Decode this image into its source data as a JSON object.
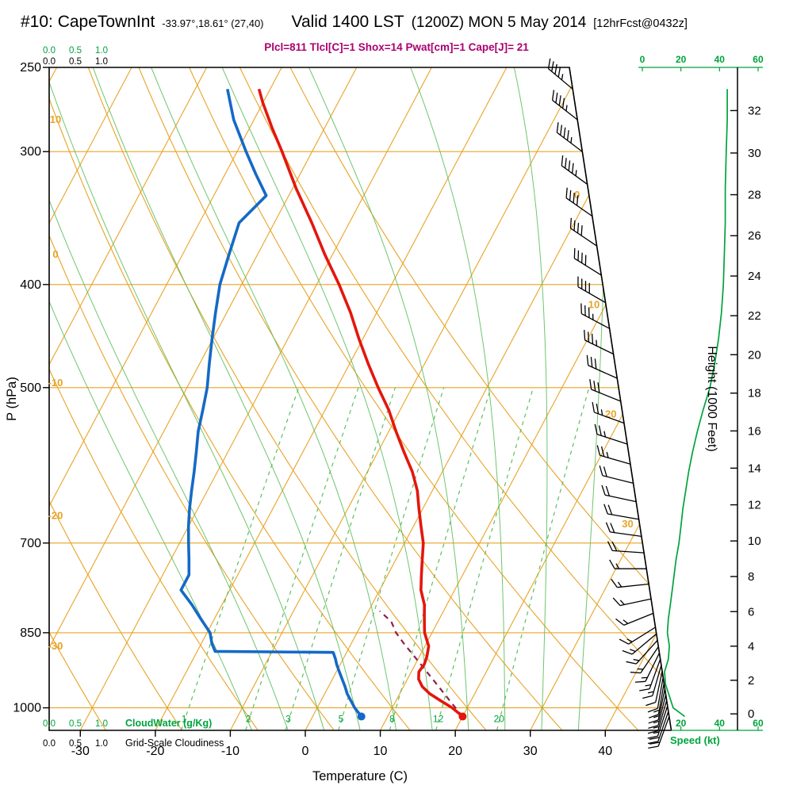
{
  "header": {
    "station_id": "#10: CapeTownInt",
    "coords": "-33.97°,18.61° (27,40)",
    "valid": "Valid 1400 LST",
    "valid_zulu": "(1200Z) MON 5 May 2014",
    "fcst": "[12hrFcst@0432z]",
    "indices": "Plcl=811 Tlcl[C]=1 Shox=14 Pwat[cm]=1 Cape[J]= 21"
  },
  "colors": {
    "orange": "#E8A326",
    "green": "#00A33C",
    "green_light": "#5FBF5F",
    "red": "#E3170D",
    "blue": "#1569C7",
    "parcel": "#902048",
    "magenta": "#AB0070",
    "black": "#000000"
  },
  "axes": {
    "pressure_label": "P (hPa)",
    "pressure_ticks": [
      250,
      300,
      400,
      500,
      700,
      850,
      1000
    ],
    "temp_label": "Temperature (C)",
    "temp_ticks": [
      -30,
      -20,
      -10,
      0,
      10,
      20,
      30,
      40
    ],
    "height_label": "Height (1000 Feet)",
    "height_ticks": [
      0,
      2,
      4,
      6,
      8,
      10,
      12,
      14,
      16,
      18,
      20,
      22,
      24,
      26,
      28,
      30,
      32
    ],
    "speed_label": "Speed (kt)",
    "speed_ticks_top": [
      0,
      20,
      40,
      60
    ],
    "speed_ticks_bottom": [
      20,
      40,
      60
    ],
    "cloud_scale": [
      "0.0",
      "0.5",
      "1.0"
    ],
    "cloudwater_label": "CloudWater (g/Kg)",
    "cloudiness_label": "Grid-Scale Cloudiness"
  },
  "background": {
    "isotherm_min": -110,
    "isotherm_max": 40,
    "isotherm_step": 10,
    "isotherm_right_labels": [
      0,
      10,
      20,
      30
    ],
    "dry_adiabat_values": [
      -30,
      -20,
      -10,
      0,
      10,
      20,
      30,
      40,
      50,
      60
    ],
    "dry_adiabat_left_labels": [
      10,
      0,
      -10,
      -20,
      -30
    ],
    "moist_adiabat_values": [
      -10,
      -5,
      0,
      5,
      10,
      15,
      20,
      25,
      30,
      35
    ],
    "mixing_ratio_values": [
      1,
      2,
      3,
      5,
      8,
      12,
      20
    ]
  },
  "chart_data": {
    "type": "skewt-logp",
    "title": "#10: CapeTownInt Valid 1400 LST (1200Z) MON 5 May 2014",
    "pressure_range_hPa": [
      250,
      1050
    ],
    "temperature_range_C": [
      -30,
      40
    ],
    "temperature_profile": [
      [
        1019,
        20
      ],
      [
        1000,
        18
      ],
      [
        985,
        16
      ],
      [
        970,
        14
      ],
      [
        955,
        12.5
      ],
      [
        940,
        11.5
      ],
      [
        925,
        11
      ],
      [
        910,
        11.2
      ],
      [
        895,
        11
      ],
      [
        875,
        10.5
      ],
      [
        850,
        9
      ],
      [
        825,
        8
      ],
      [
        800,
        7
      ],
      [
        775,
        5.5
      ],
      [
        750,
        4.5
      ],
      [
        725,
        3.5
      ],
      [
        700,
        2.5
      ],
      [
        675,
        1
      ],
      [
        650,
        -0.5
      ],
      [
        625,
        -2
      ],
      [
        600,
        -4
      ],
      [
        575,
        -6.5
      ],
      [
        550,
        -9
      ],
      [
        525,
        -11.5
      ],
      [
        500,
        -14.5
      ],
      [
        475,
        -17.5
      ],
      [
        450,
        -20.5
      ],
      [
        425,
        -23.5
      ],
      [
        400,
        -27
      ],
      [
        375,
        -31
      ],
      [
        350,
        -35
      ],
      [
        325,
        -39.5
      ],
      [
        300,
        -44
      ],
      [
        285,
        -47
      ],
      [
        270,
        -50
      ],
      [
        262,
        -51.5
      ]
    ],
    "dewpoint_profile": [
      [
        1019,
        6.5
      ],
      [
        1000,
        5
      ],
      [
        985,
        4
      ],
      [
        970,
        3
      ],
      [
        955,
        2.2
      ],
      [
        940,
        1.3
      ],
      [
        925,
        0.4
      ],
      [
        910,
        -0.5
      ],
      [
        900,
        -1
      ],
      [
        890,
        -1.6
      ],
      [
        887,
        -1.8
      ],
      [
        885,
        -17.6
      ],
      [
        870,
        -18.6
      ],
      [
        850,
        -19.6
      ],
      [
        825,
        -21.8
      ],
      [
        800,
        -24
      ],
      [
        775,
        -26.5
      ],
      [
        750,
        -26.5
      ],
      [
        725,
        -27.6
      ],
      [
        700,
        -28.8
      ],
      [
        675,
        -30
      ],
      [
        650,
        -31.1
      ],
      [
        625,
        -32.1
      ],
      [
        600,
        -33.1
      ],
      [
        575,
        -34.2
      ],
      [
        550,
        -35.4
      ],
      [
        525,
        -36.3
      ],
      [
        500,
        -37.3
      ],
      [
        475,
        -38.7
      ],
      [
        450,
        -40.1
      ],
      [
        425,
        -41.5
      ],
      [
        400,
        -42.9
      ],
      [
        375,
        -43.8
      ],
      [
        350,
        -44.7
      ],
      [
        330,
        -43
      ],
      [
        315,
        -45.9
      ],
      [
        300,
        -48.8
      ],
      [
        280,
        -52.7
      ],
      [
        262,
        -55.7
      ]
    ],
    "parcel_profile": [
      [
        1019,
        20
      ],
      [
        990,
        17.6
      ],
      [
        960,
        15.1
      ],
      [
        930,
        12.5
      ],
      [
        900,
        9.8
      ],
      [
        870,
        7
      ],
      [
        850,
        5.2
      ],
      [
        830,
        3.8
      ],
      [
        811,
        1.5
      ]
    ],
    "surface_temp_dot": [
      1019,
      20
    ],
    "surface_dewpoint_dot": [
      1019,
      6.5
    ],
    "wind_barbs": [
      [
        262,
        310,
        45
      ],
      [
        280,
        308,
        45
      ],
      [
        300,
        307,
        44
      ],
      [
        322,
        306,
        43
      ],
      [
        345,
        305,
        42
      ],
      [
        368,
        304,
        42
      ],
      [
        392,
        302,
        40
      ],
      [
        416,
        300,
        38
      ],
      [
        440,
        298,
        36
      ],
      [
        465,
        296,
        34
      ],
      [
        490,
        294,
        32
      ],
      [
        515,
        292,
        29
      ],
      [
        540,
        290,
        26
      ],
      [
        565,
        288,
        24
      ],
      [
        590,
        286,
        23
      ],
      [
        615,
        284,
        22
      ],
      [
        640,
        282,
        21
      ],
      [
        665,
        280,
        20
      ],
      [
        690,
        278,
        19
      ],
      [
        715,
        274,
        18
      ],
      [
        740,
        270,
        17
      ],
      [
        765,
        264,
        16
      ],
      [
        790,
        258,
        15
      ],
      [
        815,
        248,
        14
      ],
      [
        840,
        238,
        13
      ],
      [
        852,
        230,
        13
      ],
      [
        864,
        222,
        14
      ],
      [
        876,
        214,
        15
      ],
      [
        888,
        206,
        15
      ],
      [
        900,
        200,
        14
      ],
      [
        912,
        196,
        13
      ],
      [
        924,
        192,
        12
      ],
      [
        936,
        190,
        12
      ],
      [
        948,
        190,
        13
      ],
      [
        960,
        192,
        14
      ],
      [
        972,
        194,
        15
      ],
      [
        984,
        196,
        16
      ],
      [
        996,
        198,
        17
      ],
      [
        1008,
        199,
        19
      ],
      [
        1019,
        200,
        22
      ]
    ],
    "speed_profile_kt": [
      [
        262,
        44
      ],
      [
        280,
        44
      ],
      [
        300,
        43.5
      ],
      [
        325,
        43
      ],
      [
        350,
        43
      ],
      [
        375,
        42.5
      ],
      [
        400,
        42
      ],
      [
        425,
        41
      ],
      [
        450,
        39.5
      ],
      [
        475,
        37.5
      ],
      [
        500,
        35
      ],
      [
        525,
        31.5
      ],
      [
        550,
        28.5
      ],
      [
        575,
        26
      ],
      [
        600,
        24
      ],
      [
        625,
        22.5
      ],
      [
        650,
        21
      ],
      [
        675,
        20
      ],
      [
        700,
        19
      ],
      [
        725,
        17.5
      ],
      [
        750,
        16.5
      ],
      [
        775,
        15.5
      ],
      [
        800,
        14.5
      ],
      [
        825,
        13.5
      ],
      [
        850,
        13
      ],
      [
        875,
        14
      ],
      [
        900,
        13.5
      ],
      [
        925,
        11.5
      ],
      [
        950,
        12
      ],
      [
        975,
        14
      ],
      [
        1000,
        16
      ],
      [
        1019,
        22
      ]
    ]
  }
}
